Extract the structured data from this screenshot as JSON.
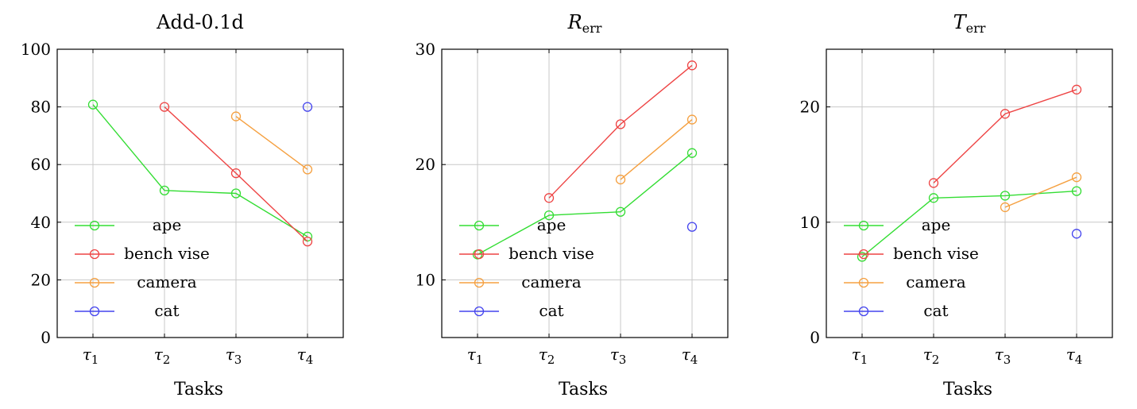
{
  "chart_data": [
    {
      "type": "line",
      "title": "Add-0.1d",
      "title_main": "Add-0.1d",
      "title_sub": "",
      "xlabel": "Tasks",
      "ylabel": "",
      "categories": [
        "τ1",
        "τ2",
        "τ3",
        "τ4"
      ],
      "category_base": [
        "τ",
        "τ",
        "τ",
        "τ"
      ],
      "category_sub": [
        "1",
        "2",
        "3",
        "4"
      ],
      "ylim": [
        0,
        100
      ],
      "yticks": [
        0,
        20,
        40,
        60,
        80,
        100
      ],
      "grid": true,
      "legend_position": "bottom-left",
      "series": [
        {
          "name": "ape",
          "color": "#33dd33",
          "values": [
            80.8,
            51.0,
            50.0,
            35.0
          ]
        },
        {
          "name": "bench vise",
          "color": "#ee4444",
          "values": [
            null,
            80.0,
            57.0,
            33.3
          ]
        },
        {
          "name": "camera",
          "color": "#f5a040",
          "values": [
            null,
            null,
            76.7,
            58.3
          ]
        },
        {
          "name": "cat",
          "color": "#4444ee",
          "values": [
            null,
            null,
            null,
            80.0
          ]
        }
      ]
    },
    {
      "type": "line",
      "title": "Rerr",
      "title_main": "R",
      "title_sub": "err",
      "xlabel": "Tasks",
      "ylabel": "",
      "categories": [
        "τ1",
        "τ2",
        "τ3",
        "τ4"
      ],
      "category_base": [
        "τ",
        "τ",
        "τ",
        "τ"
      ],
      "category_sub": [
        "1",
        "2",
        "3",
        "4"
      ],
      "ylim": [
        5,
        30
      ],
      "yticks": [
        10,
        20,
        30
      ],
      "grid": true,
      "legend_position": "bottom-left",
      "series": [
        {
          "name": "ape",
          "color": "#33dd33",
          "values": [
            12.2,
            15.6,
            15.9,
            21.0
          ]
        },
        {
          "name": "bench vise",
          "color": "#ee4444",
          "values": [
            null,
            17.1,
            23.5,
            28.6
          ]
        },
        {
          "name": "camera",
          "color": "#f5a040",
          "values": [
            null,
            null,
            18.7,
            23.9
          ]
        },
        {
          "name": "cat",
          "color": "#4444ee",
          "values": [
            null,
            null,
            null,
            14.6
          ]
        }
      ]
    },
    {
      "type": "line",
      "title": "Terr",
      "title_main": "T",
      "title_sub": "err",
      "xlabel": "Tasks",
      "ylabel": "",
      "categories": [
        "τ1",
        "τ2",
        "τ3",
        "τ4"
      ],
      "category_base": [
        "τ",
        "τ",
        "τ",
        "τ"
      ],
      "category_sub": [
        "1",
        "2",
        "3",
        "4"
      ],
      "ylim": [
        0,
        25
      ],
      "yticks": [
        0,
        10,
        20
      ],
      "grid": true,
      "legend_position": "bottom-left",
      "series": [
        {
          "name": "ape",
          "color": "#33dd33",
          "values": [
            7.0,
            12.1,
            12.3,
            12.7
          ]
        },
        {
          "name": "bench vise",
          "color": "#ee4444",
          "values": [
            null,
            13.4,
            19.4,
            21.5
          ]
        },
        {
          "name": "camera",
          "color": "#f5a040",
          "values": [
            null,
            null,
            11.3,
            13.9
          ]
        },
        {
          "name": "cat",
          "color": "#4444ee",
          "values": [
            null,
            null,
            null,
            9.0
          ]
        }
      ]
    }
  ]
}
